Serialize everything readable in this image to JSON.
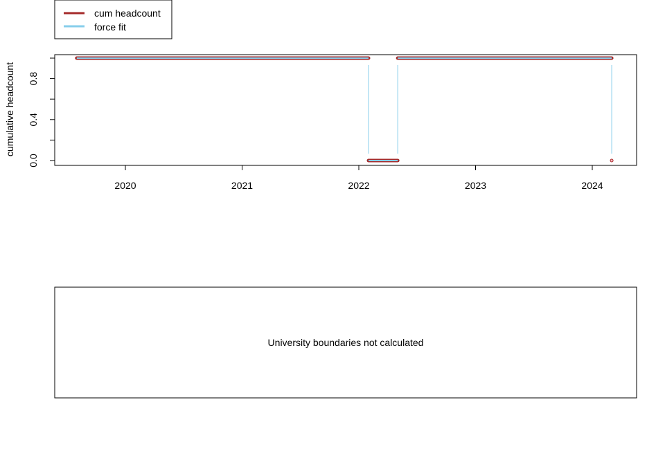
{
  "chart_data": [
    {
      "type": "line",
      "title": "",
      "xlabel": "",
      "ylabel": "cumulative headcount",
      "legend_position": "top-left",
      "x_ticks": [
        "2020",
        "2021",
        "2022",
        "2023",
        "2024"
      ],
      "y_ticks": [
        "0.0",
        "0.4",
        "0.8"
      ],
      "ylim": [
        0,
        1
      ],
      "xlim": [
        "2019-08",
        "2024-04"
      ],
      "grid": false,
      "series": [
        {
          "name": "cum headcount",
          "color": "#a52a2a",
          "segments": [
            {
              "x_start": "2019-08",
              "x_end": "2022-02",
              "y": 1
            },
            {
              "x_start": "2022-02",
              "x_end": "2022-05",
              "y": 0
            },
            {
              "x_start": "2022-05",
              "x_end": "2024-03",
              "y": 1
            },
            {
              "x_start": "2024-03",
              "x_end": "2024-03",
              "y": 0
            }
          ]
        },
        {
          "name": "force fit",
          "color": "#87ceeb",
          "segments": [
            {
              "x_start": "2019-08",
              "x_end": "2022-02",
              "y": 1
            },
            {
              "x_start": "2022-02",
              "x_end": "2022-05",
              "y": 0
            },
            {
              "x_start": "2022-05",
              "x_end": "2024-03",
              "y": 1
            }
          ],
          "transitions": [
            "2022-02",
            "2022-05",
            "2024-03"
          ]
        }
      ]
    },
    {
      "type": "empty",
      "message": "University boundaries not calculated"
    }
  ]
}
